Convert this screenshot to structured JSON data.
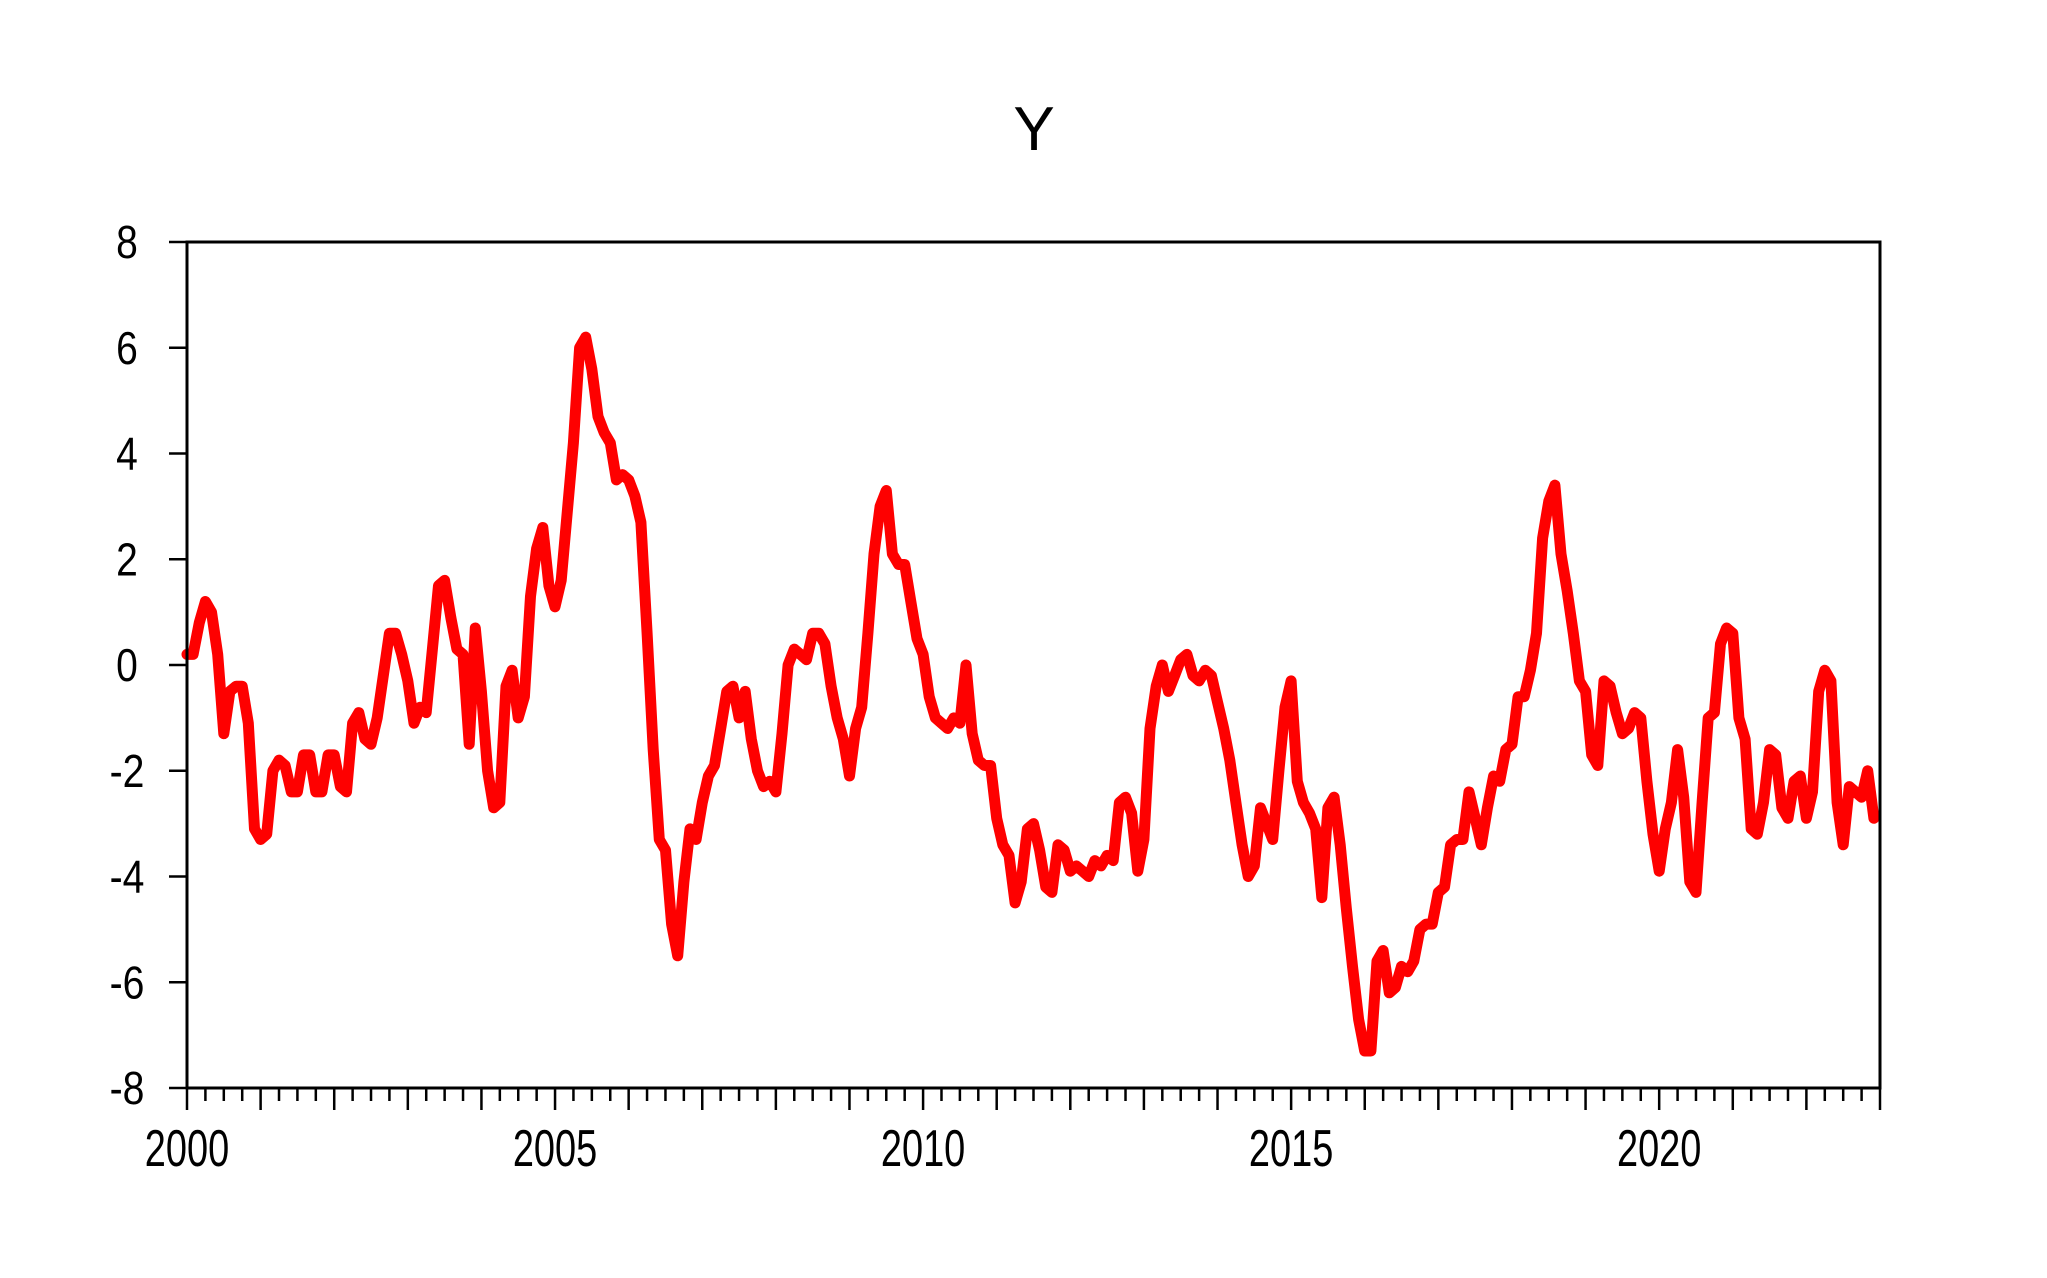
{
  "title": "Y",
  "chart_data": {
    "type": "line",
    "title": "Y",
    "xlabel": "",
    "ylabel": "",
    "grid": false,
    "legend": "none",
    "background_color": "#ffffff",
    "axis_color": "#000000",
    "x_range": [
      2000,
      2023
    ],
    "x_tick_labels": [
      "2000",
      "2005",
      "2010",
      "2015",
      "2020"
    ],
    "x_minor_tick_interval_years": 0.25,
    "x_major_tick_interval_years": 1,
    "ylim": [
      -8,
      8
    ],
    "y_ticks": [
      "8",
      "6",
      "4",
      "2",
      "0",
      "-2",
      "-4",
      "-6",
      "-8"
    ],
    "series": [
      {
        "name": "Y",
        "color": "#fe0000",
        "stroke_width": 11,
        "start_period": "2000M01",
        "end_period": "2022M12",
        "frequency": "monthly",
        "values": [
          0.2,
          0.2,
          0.8,
          1.2,
          1.0,
          0.2,
          -1.3,
          -0.5,
          -0.4,
          -0.4,
          -1.1,
          -3.1,
          -3.3,
          -3.2,
          -2.0,
          -1.8,
          -1.9,
          -2.4,
          -2.4,
          -1.7,
          -1.7,
          -2.4,
          -2.4,
          -1.7,
          -1.7,
          -2.3,
          -2.4,
          -1.1,
          -0.9,
          -1.4,
          -1.5,
          -1.0,
          -0.2,
          0.6,
          0.6,
          0.2,
          -0.3,
          -1.1,
          -0.8,
          -0.9,
          0.3,
          1.5,
          1.6,
          0.9,
          0.3,
          0.2,
          -1.5,
          0.7,
          -0.5,
          -2.0,
          -2.7,
          -2.6,
          -0.4,
          -0.1,
          -1.0,
          -0.6,
          1.3,
          2.2,
          2.6,
          1.5,
          1.1,
          1.6,
          2.9,
          4.2,
          6.0,
          6.2,
          5.6,
          4.7,
          4.4,
          4.2,
          3.5,
          3.6,
          3.5,
          3.2,
          2.7,
          0.6,
          -1.6,
          -3.3,
          -3.5,
          -4.9,
          -5.5,
          -4.1,
          -3.1,
          -3.3,
          -2.6,
          -2.1,
          -1.9,
          -1.2,
          -0.5,
          -0.4,
          -1.0,
          -0.5,
          -1.4,
          -2.0,
          -2.3,
          -2.2,
          -2.4,
          -1.3,
          0.0,
          0.3,
          0.2,
          0.1,
          0.6,
          0.6,
          0.4,
          -0.4,
          -1.0,
          -1.4,
          -2.1,
          -1.2,
          -0.8,
          0.6,
          2.1,
          3.0,
          3.3,
          2.1,
          1.9,
          1.9,
          1.2,
          0.5,
          0.2,
          -0.6,
          -1.0,
          -1.1,
          -1.2,
          -1.0,
          -1.1,
          0.0,
          -1.3,
          -1.8,
          -1.9,
          -1.9,
          -2.9,
          -3.4,
          -3.6,
          -4.5,
          -4.1,
          -3.1,
          -3.0,
          -3.5,
          -4.2,
          -4.3,
          -3.4,
          -3.5,
          -3.9,
          -3.8,
          -3.9,
          -4.0,
          -3.7,
          -3.8,
          -3.6,
          -3.7,
          -2.6,
          -2.5,
          -2.8,
          -3.9,
          -3.3,
          -1.2,
          -0.4,
          0.0,
          -0.5,
          -0.2,
          0.1,
          0.2,
          -0.2,
          -0.3,
          -0.1,
          -0.2,
          -0.7,
          -1.2,
          -1.8,
          -2.6,
          -3.4,
          -4.0,
          -3.8,
          -2.7,
          -3.0,
          -3.3,
          -2.0,
          -0.8,
          -0.3,
          -2.2,
          -2.6,
          -2.8,
          -3.1,
          -4.4,
          -2.7,
          -2.5,
          -3.4,
          -4.6,
          -5.7,
          -6.7,
          -7.3,
          -7.3,
          -5.6,
          -5.4,
          -6.2,
          -6.1,
          -5.7,
          -5.8,
          -5.6,
          -5.0,
          -4.9,
          -4.9,
          -4.3,
          -4.2,
          -3.4,
          -3.3,
          -3.3,
          -2.4,
          -2.9,
          -3.4,
          -2.7,
          -2.1,
          -2.2,
          -1.6,
          -1.5,
          -0.6,
          -0.6,
          -0.1,
          0.6,
          2.4,
          3.1,
          3.4,
          2.1,
          1.4,
          0.6,
          -0.3,
          -0.5,
          -1.7,
          -1.9,
          -0.3,
          -0.4,
          -0.9,
          -1.3,
          -1.2,
          -0.9,
          -1.0,
          -2.2,
          -3.2,
          -3.9,
          -3.1,
          -2.6,
          -1.6,
          -2.5,
          -4.1,
          -4.3,
          -2.6,
          -1.0,
          -0.9,
          0.4,
          0.7,
          0.6,
          -1.0,
          -1.4,
          -3.1,
          -3.2,
          -2.6,
          -1.6,
          -1.7,
          -2.7,
          -2.9,
          -2.2,
          -2.1,
          -2.9,
          -2.4,
          -0.5,
          -0.1,
          -0.3,
          -2.6,
          -3.4,
          -2.3,
          -2.4,
          -2.5,
          -2.0,
          -2.9
        ]
      }
    ]
  }
}
